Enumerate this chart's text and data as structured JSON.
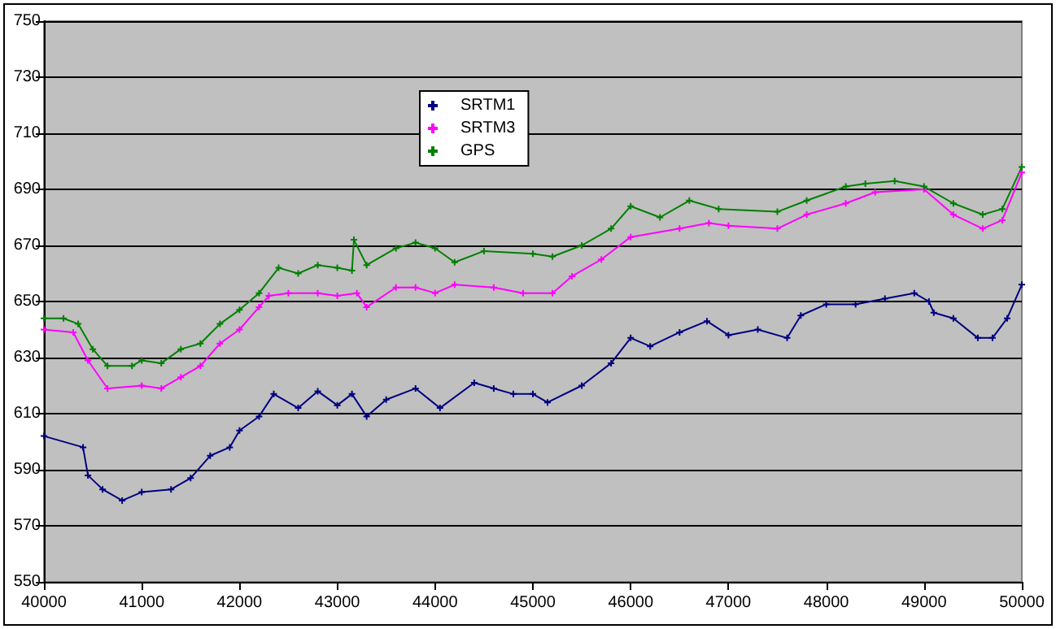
{
  "chart_data": {
    "type": "line",
    "xlim": [
      40000,
      50000
    ],
    "xticks": [
      40000,
      41000,
      42000,
      43000,
      44000,
      45000,
      46000,
      47000,
      48000,
      49000,
      50000
    ],
    "ylim": [
      550,
      750
    ],
    "yticks": [
      550,
      570,
      590,
      610,
      630,
      650,
      670,
      690,
      710,
      730,
      750
    ],
    "grid": "y",
    "legend": "top",
    "marker": "cross",
    "line_style": "solid",
    "series": [
      {
        "name": "SRTM1",
        "color": "#000080",
        "x": [
          40000,
          40400,
          40450,
          40600,
          40800,
          41000,
          41300,
          41500,
          41700,
          41900,
          42000,
          42200,
          42350,
          42600,
          42800,
          43000,
          43150,
          43300,
          43500,
          43800,
          44050,
          44400,
          44600,
          44800,
          45000,
          45150,
          45500,
          45800,
          46000,
          46200,
          46500,
          46780,
          47000,
          47300,
          47600,
          47740,
          48000,
          48300,
          48600,
          48900,
          49050,
          49100,
          49300,
          49550,
          49700,
          49850,
          50000
        ],
        "values": [
          602,
          598,
          588,
          583,
          579,
          582,
          583,
          587,
          595,
          598,
          604,
          609,
          617,
          612,
          618,
          613,
          617,
          609,
          615,
          619,
          612,
          621,
          619,
          617,
          617,
          614,
          620,
          628,
          637,
          634,
          639,
          643,
          638,
          640,
          637,
          645,
          649,
          649,
          651,
          653,
          650,
          646,
          644,
          637,
          637,
          644,
          656
        ]
      },
      {
        "name": "SRTM3",
        "color": "#ff00ff",
        "x": [
          40000,
          40300,
          40450,
          40650,
          41000,
          41200,
          41400,
          41600,
          41800,
          42000,
          42200,
          42300,
          42500,
          42800,
          43000,
          43200,
          43300,
          43600,
          43800,
          44000,
          44200,
          44600,
          44900,
          45200,
          45400,
          45700,
          46000,
          46500,
          46800,
          47000,
          47500,
          47800,
          48200,
          48500,
          49000,
          49300,
          49600,
          49800,
          50000
        ],
        "values": [
          640,
          639,
          629,
          619,
          620,
          619,
          623,
          627,
          635,
          640,
          648,
          652,
          653,
          653,
          652,
          653,
          648,
          655,
          655,
          653,
          656,
          655,
          653,
          653,
          659,
          665,
          673,
          676,
          678,
          677,
          676,
          681,
          685,
          689,
          690,
          681,
          676,
          679,
          696
        ]
      },
      {
        "name": "GPS",
        "color": "#008000",
        "x": [
          40000,
          40200,
          40350,
          40500,
          40650,
          40900,
          41000,
          41200,
          41400,
          41600,
          41800,
          42000,
          42200,
          42400,
          42600,
          42800,
          43000,
          43150,
          43170,
          43300,
          43600,
          43800,
          44000,
          44200,
          44500,
          45000,
          45200,
          45500,
          45800,
          46000,
          46300,
          46600,
          46900,
          47500,
          47800,
          48200,
          48400,
          48700,
          49000,
          49300,
          49600,
          49800,
          50000
        ],
        "values": [
          644,
          644,
          642,
          633,
          627,
          627,
          629,
          628,
          633,
          635,
          642,
          647,
          653,
          662,
          660,
          663,
          662,
          661,
          672,
          663,
          669,
          671,
          669,
          664,
          668,
          667,
          666,
          670,
          676,
          684,
          680,
          686,
          683,
          682,
          686,
          691,
          692,
          693,
          691,
          685,
          681,
          683,
          698
        ]
      }
    ]
  }
}
